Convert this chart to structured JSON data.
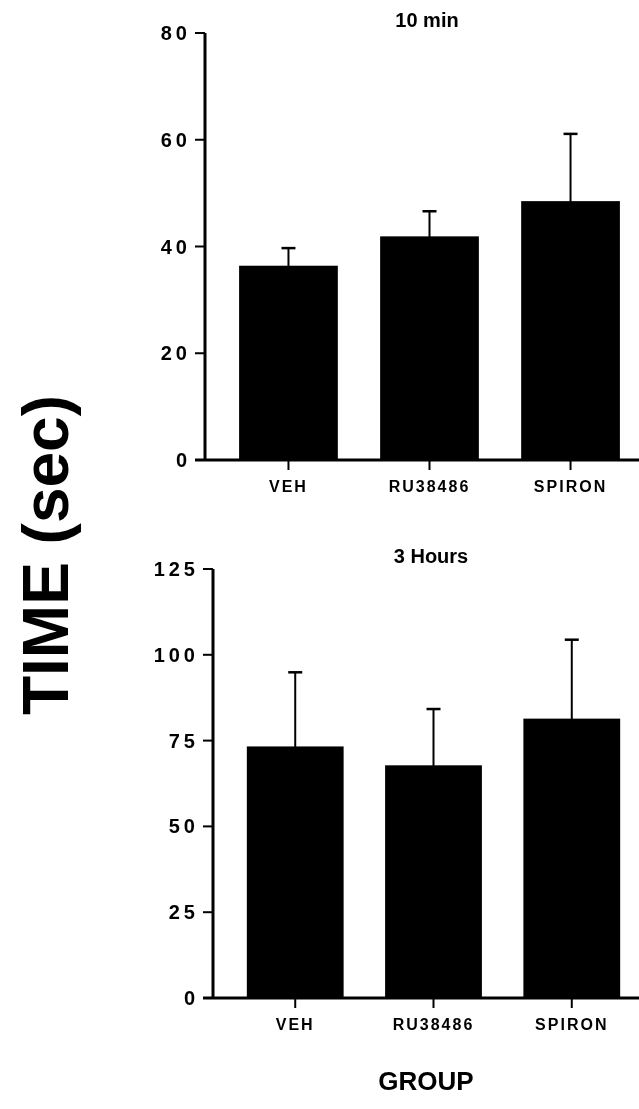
{
  "chart_data": [
    {
      "type": "bar",
      "title": "10  min",
      "ylabel": "TIME (sec)",
      "categories": [
        "VEH",
        "RU38486",
        "SPIRON"
      ],
      "values": [
        36.4,
        41.9,
        48.5
      ],
      "errors": [
        3.3,
        4.7,
        12.6
      ],
      "color": "#000000",
      "ylim": [
        0,
        80
      ],
      "yticks": [
        0,
        20,
        40,
        60,
        80
      ],
      "grid": false
    },
    {
      "type": "bar",
      "title": "3  Hours",
      "xlabel": "GROUP",
      "categories": [
        "VEH",
        "RU38486",
        "SPIRON"
      ],
      "values": [
        73.3,
        67.8,
        81.4
      ],
      "errors": [
        21.6,
        16.4,
        23.0
      ],
      "color": "#000000",
      "ylim": [
        0,
        125
      ],
      "yticks": [
        0,
        25,
        50,
        75,
        100,
        125
      ],
      "grid": false
    }
  ]
}
